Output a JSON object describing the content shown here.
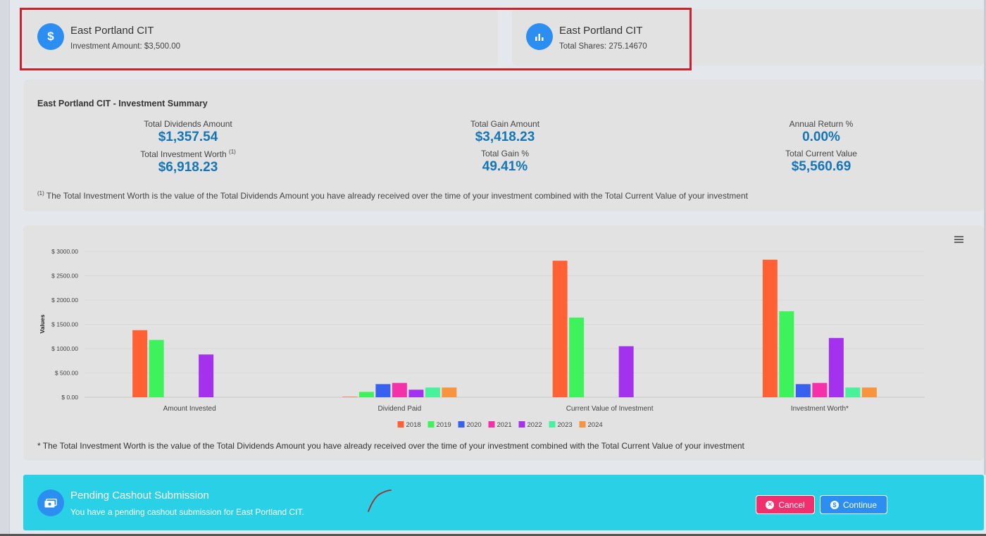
{
  "cards": [
    {
      "icon": "dollar-icon",
      "icon_glyph": "$",
      "title": "East Portland CIT",
      "subtitle": "Investment Amount: $3,500.00"
    },
    {
      "icon": "bar-chart-icon",
      "title": "East Portland CIT",
      "subtitle": "Total Shares: 275.14670"
    }
  ],
  "summary": {
    "title": "East Portland CIT - Investment Summary",
    "metrics": {
      "total_dividends": {
        "label": "Total Dividends Amount",
        "value": "$1,357.54"
      },
      "total_worth": {
        "label": "Total Investment Worth",
        "sup": "(1)",
        "value": "$6,918.23"
      },
      "total_gain_amount": {
        "label": "Total Gain Amount",
        "value": "$3,418.23"
      },
      "total_gain_pct": {
        "label": "Total Gain %",
        "value": "49.41%"
      },
      "annual_return": {
        "label": "Annual Return %",
        "value": "0.00%"
      },
      "current_value": {
        "label": "Total Current Value",
        "value": "$5,560.69"
      }
    },
    "footnote_mark": "(1)",
    "footnote": "The Total Investment Worth is the value of the Total Dividends Amount you have already received over the time of your investment combined with the Total Current Value of your investment"
  },
  "chart_data": {
    "type": "bar",
    "ylabel": "Values",
    "ylim": [
      0,
      3000
    ],
    "yticks": [
      "$ 0.00",
      "$ 500.00",
      "$ 1000.00",
      "$ 1500.00",
      "$ 2000.00",
      "$ 2500.00",
      "$ 3000.00"
    ],
    "ytick_values": [
      0,
      500,
      1000,
      1500,
      2000,
      2500,
      3000
    ],
    "categories": [
      "Amount Invested",
      "Dividend Paid",
      "Current Value of Investment",
      "Investment Worth*"
    ],
    "legend_position": "bottom",
    "grid": true,
    "series": [
      {
        "name": "2018",
        "color": "#ff6135",
        "values": [
          1380,
          10,
          2810,
          2830
        ]
      },
      {
        "name": "2019",
        "color": "#3ef25b",
        "values": [
          1180,
          110,
          1640,
          1770
        ]
      },
      {
        "name": "2020",
        "color": "#3761ee",
        "values": [
          0,
          270,
          0,
          270
        ]
      },
      {
        "name": "2021",
        "color": "#f531a9",
        "values": [
          0,
          295,
          0,
          295
        ]
      },
      {
        "name": "2022",
        "color": "#a431ee",
        "values": [
          880,
          155,
          1050,
          1220
        ]
      },
      {
        "name": "2023",
        "color": "#47f29a",
        "values": [
          0,
          200,
          0,
          200
        ]
      },
      {
        "name": "2024",
        "color": "#f7943d",
        "values": [
          0,
          200,
          0,
          200
        ]
      }
    ],
    "note": "* The Total Investment Worth is the value of the Total Dividends Amount you have already received over the time of your investment combined with the Total Current Value of your investment"
  },
  "cashout": {
    "title": "Pending Cashout Submission",
    "message": "You have a pending cashout submission for East Portland CIT.",
    "cancel_label": "Cancel",
    "continue_label": "Continue",
    "continue_icon_glyph": "$"
  }
}
